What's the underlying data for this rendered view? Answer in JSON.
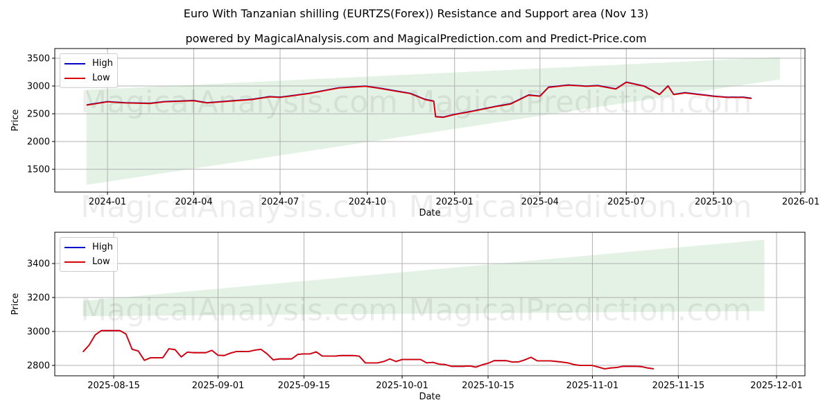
{
  "header": {
    "title": "Euro With Tanzanian shilling (EURTZS(Forex)) Resistance and Support area (Nov 13)",
    "subtitle": "powered by MagicalAnalysis.com and MagicalPrediction.com and Predict-Price.com"
  },
  "watermarks": [
    "MagicalAnalysis.com",
    "MagicalPrediction.com"
  ],
  "colors": {
    "high": "#0000cc",
    "low": "#dd0000",
    "band": "#c8e6c9",
    "grid": "#b0b0b0"
  },
  "legend": {
    "high": "High",
    "low": "Low"
  },
  "chart_data": [
    {
      "type": "line",
      "title": "Euro With Tanzanian shilling (EURTZS(Forex)) Resistance and Support area (Nov 13)",
      "xlabel": "Date",
      "ylabel": "Price",
      "ylim": [
        1090,
        3675
      ],
      "yticks": [
        1500,
        2000,
        2500,
        3000,
        3500
      ],
      "xticks": [
        "2024-01",
        "2024-04",
        "2024-07",
        "2024-10",
        "2025-01",
        "2025-04",
        "2025-07",
        "2025-10",
        "2026-01"
      ],
      "grid": true,
      "legend_position": "upper left",
      "series": [
        {
          "name": "High",
          "color": "#0000cc",
          "x": [
            "2023-12-10",
            "2024-01-01",
            "2024-01-20",
            "2024-02-15",
            "2024-03-01",
            "2024-04-01",
            "2024-04-15",
            "2024-05-15",
            "2024-06-01",
            "2024-06-20",
            "2024-07-01",
            "2024-08-01",
            "2024-09-01",
            "2024-09-29",
            "2024-10-15",
            "2024-11-01",
            "2024-11-15",
            "2024-12-01",
            "2024-12-10",
            "2024-12-12",
            "2024-12-20",
            "2025-01-01",
            "2025-01-20",
            "2025-02-15",
            "2025-03-01",
            "2025-03-20",
            "2025-04-01",
            "2025-04-10",
            "2025-05-01",
            "2025-05-20",
            "2025-06-01",
            "2025-06-20",
            "2025-07-01",
            "2025-07-20",
            "2025-08-05",
            "2025-08-14",
            "2025-08-20",
            "2025-09-01",
            "2025-10-01",
            "2025-10-15",
            "2025-11-01",
            "2025-11-10"
          ],
          "values": [
            2660,
            2720,
            2700,
            2690,
            2720,
            2740,
            2700,
            2740,
            2760,
            2810,
            2800,
            2870,
            2970,
            3000,
            2960,
            2910,
            2870,
            2760,
            2730,
            2450,
            2440,
            2490,
            2550,
            2640,
            2680,
            2840,
            2820,
            2980,
            3020,
            3000,
            3010,
            2950,
            3070,
            3000,
            2850,
            3005,
            2850,
            2880,
            2820,
            2800,
            2800,
            2780
          ]
        },
        {
          "name": "Low",
          "color": "#dd0000",
          "x": [
            "2023-12-10",
            "2024-01-01",
            "2024-01-20",
            "2024-02-15",
            "2024-03-01",
            "2024-04-01",
            "2024-04-15",
            "2024-05-15",
            "2024-06-01",
            "2024-06-20",
            "2024-07-01",
            "2024-08-01",
            "2024-09-01",
            "2024-09-29",
            "2024-10-15",
            "2024-11-01",
            "2024-11-15",
            "2024-12-01",
            "2024-12-10",
            "2024-12-12",
            "2024-12-20",
            "2025-01-01",
            "2025-01-20",
            "2025-02-15",
            "2025-03-01",
            "2025-03-20",
            "2025-04-01",
            "2025-04-10",
            "2025-05-01",
            "2025-05-20",
            "2025-06-01",
            "2025-06-20",
            "2025-07-01",
            "2025-07-20",
            "2025-08-05",
            "2025-08-14",
            "2025-08-20",
            "2025-09-01",
            "2025-10-01",
            "2025-10-15",
            "2025-11-01",
            "2025-11-10"
          ],
          "values": [
            2655,
            2715,
            2695,
            2685,
            2715,
            2735,
            2695,
            2735,
            2755,
            2805,
            2795,
            2865,
            2965,
            2995,
            2955,
            2905,
            2865,
            2755,
            2725,
            2445,
            2435,
            2485,
            2545,
            2635,
            2675,
            2835,
            2815,
            2975,
            3015,
            2995,
            3005,
            2945,
            3065,
            2995,
            2845,
            3000,
            2845,
            2875,
            2815,
            2795,
            2795,
            2775
          ]
        }
      ],
      "band": {
        "label": "Resistance and Support area",
        "x_start": "2023-12-10",
        "x_end": "2025-12-10",
        "upper": [
          2930,
          3520
        ],
        "lower": [
          1220,
          3120
        ]
      }
    },
    {
      "type": "line",
      "xlabel": "Date",
      "ylabel": "Price",
      "ylim": [
        2739,
        3584
      ],
      "yticks": [
        2800,
        3000,
        3200,
        3400
      ],
      "xticks": [
        "2025-08-15",
        "2025-09-01",
        "2025-09-15",
        "2025-10-01",
        "2025-10-15",
        "2025-11-01",
        "2025-11-15",
        "2025-12-01"
      ],
      "grid": true,
      "legend_position": "upper left",
      "series": [
        {
          "name": "High",
          "color": "#0000cc",
          "x": [
            "2025-08-10",
            "2025-08-11",
            "2025-08-12",
            "2025-08-13",
            "2025-08-14",
            "2025-08-15",
            "2025-08-16",
            "2025-08-17",
            "2025-08-18",
            "2025-08-19",
            "2025-08-20",
            "2025-08-21",
            "2025-08-22",
            "2025-08-23",
            "2025-08-24",
            "2025-08-25",
            "2025-08-26",
            "2025-08-27",
            "2025-08-28",
            "2025-08-29",
            "2025-08-30",
            "2025-08-31",
            "2025-09-01",
            "2025-09-02",
            "2025-09-03",
            "2025-09-04",
            "2025-09-05",
            "2025-09-06",
            "2025-09-07",
            "2025-09-08",
            "2025-09-09",
            "2025-09-10",
            "2025-09-11",
            "2025-09-12",
            "2025-09-13",
            "2025-09-14",
            "2025-09-15",
            "2025-09-16",
            "2025-09-17",
            "2025-09-18",
            "2025-09-19",
            "2025-09-20",
            "2025-09-21",
            "2025-09-22",
            "2025-09-23",
            "2025-09-24",
            "2025-09-25",
            "2025-09-26",
            "2025-09-27",
            "2025-09-28",
            "2025-09-29",
            "2025-09-30",
            "2025-10-01",
            "2025-10-02",
            "2025-10-03",
            "2025-10-04",
            "2025-10-05",
            "2025-10-06",
            "2025-10-07",
            "2025-10-08",
            "2025-10-09",
            "2025-10-10",
            "2025-10-11",
            "2025-10-12",
            "2025-10-13",
            "2025-10-14",
            "2025-10-15",
            "2025-10-16",
            "2025-10-17",
            "2025-10-18",
            "2025-10-19",
            "2025-10-20",
            "2025-10-21",
            "2025-10-22",
            "2025-10-23",
            "2025-10-24",
            "2025-10-25",
            "2025-10-26",
            "2025-10-27",
            "2025-10-28",
            "2025-10-29",
            "2025-10-30",
            "2025-10-31",
            "2025-11-01",
            "2025-11-02",
            "2025-11-03",
            "2025-11-04",
            "2025-11-05",
            "2025-11-06",
            "2025-11-07",
            "2025-11-08",
            "2025-11-09",
            "2025-11-10",
            "2025-11-11"
          ],
          "values": [
            2880,
            2920,
            2980,
            3005,
            3005,
            3005,
            3005,
            2985,
            2895,
            2885,
            2830,
            2845,
            2845,
            2845,
            2898,
            2893,
            2850,
            2878,
            2875,
            2875,
            2875,
            2889,
            2860,
            2858,
            2872,
            2882,
            2882,
            2882,
            2890,
            2895,
            2868,
            2833,
            2838,
            2838,
            2838,
            2865,
            2868,
            2868,
            2880,
            2855,
            2855,
            2855,
            2858,
            2858,
            2858,
            2855,
            2815,
            2815,
            2815,
            2823,
            2838,
            2823,
            2835,
            2835,
            2835,
            2835,
            2815,
            2818,
            2808,
            2805,
            2795,
            2795,
            2795,
            2797,
            2790,
            2803,
            2813,
            2828,
            2828,
            2828,
            2820,
            2821,
            2833,
            2848,
            2827,
            2827,
            2827,
            2824,
            2820,
            2815,
            2805,
            2800,
            2800,
            2800,
            2790,
            2780,
            2785,
            2788,
            2795,
            2795,
            2795,
            2793,
            2785,
            2780
          ]
        },
        {
          "name": "Low",
          "color": "#dd0000",
          "x": [
            "2025-08-10",
            "2025-08-11",
            "2025-08-12",
            "2025-08-13",
            "2025-08-14",
            "2025-08-15",
            "2025-08-16",
            "2025-08-17",
            "2025-08-18",
            "2025-08-19",
            "2025-08-20",
            "2025-08-21",
            "2025-08-22",
            "2025-08-23",
            "2025-08-24",
            "2025-08-25",
            "2025-08-26",
            "2025-08-27",
            "2025-08-28",
            "2025-08-29",
            "2025-08-30",
            "2025-08-31",
            "2025-09-01",
            "2025-09-02",
            "2025-09-03",
            "2025-09-04",
            "2025-09-05",
            "2025-09-06",
            "2025-09-07",
            "2025-09-08",
            "2025-09-09",
            "2025-09-10",
            "2025-09-11",
            "2025-09-12",
            "2025-09-13",
            "2025-09-14",
            "2025-09-15",
            "2025-09-16",
            "2025-09-17",
            "2025-09-18",
            "2025-09-19",
            "2025-09-20",
            "2025-09-21",
            "2025-09-22",
            "2025-09-23",
            "2025-09-24",
            "2025-09-25",
            "2025-09-26",
            "2025-09-27",
            "2025-09-28",
            "2025-09-29",
            "2025-09-30",
            "2025-10-01",
            "2025-10-02",
            "2025-10-03",
            "2025-10-04",
            "2025-10-05",
            "2025-10-06",
            "2025-10-07",
            "2025-10-08",
            "2025-10-09",
            "2025-10-10",
            "2025-10-11",
            "2025-10-12",
            "2025-10-13",
            "2025-10-14",
            "2025-10-15",
            "2025-10-16",
            "2025-10-17",
            "2025-10-18",
            "2025-10-19",
            "2025-10-20",
            "2025-10-21",
            "2025-10-22",
            "2025-10-23",
            "2025-10-24",
            "2025-10-25",
            "2025-10-26",
            "2025-10-27",
            "2025-10-28",
            "2025-10-29",
            "2025-10-30",
            "2025-10-31",
            "2025-11-01",
            "2025-11-02",
            "2025-11-03",
            "2025-11-04",
            "2025-11-05",
            "2025-11-06",
            "2025-11-07",
            "2025-11-08",
            "2025-11-09",
            "2025-11-10",
            "2025-11-11"
          ],
          "values": [
            2880,
            2920,
            2980,
            3005,
            3005,
            3005,
            3005,
            2985,
            2895,
            2885,
            2830,
            2845,
            2845,
            2845,
            2898,
            2893,
            2850,
            2878,
            2875,
            2875,
            2875,
            2889,
            2860,
            2858,
            2872,
            2882,
            2882,
            2882,
            2890,
            2895,
            2868,
            2833,
            2838,
            2838,
            2838,
            2865,
            2868,
            2868,
            2880,
            2855,
            2855,
            2855,
            2858,
            2858,
            2858,
            2855,
            2815,
            2815,
            2815,
            2823,
            2838,
            2823,
            2835,
            2835,
            2835,
            2835,
            2815,
            2818,
            2808,
            2805,
            2795,
            2795,
            2795,
            2797,
            2790,
            2803,
            2813,
            2828,
            2828,
            2828,
            2820,
            2821,
            2833,
            2848,
            2827,
            2827,
            2827,
            2824,
            2820,
            2815,
            2805,
            2800,
            2800,
            2800,
            2790,
            2780,
            2785,
            2788,
            2795,
            2795,
            2795,
            2793,
            2785,
            2780
          ]
        }
      ],
      "band": {
        "label": "Resistance and Support area",
        "x_start": "2025-08-10",
        "x_end": "2025-11-29",
        "upper": [
          3180,
          3540
        ],
        "lower": [
          3090,
          3120
        ]
      }
    }
  ]
}
